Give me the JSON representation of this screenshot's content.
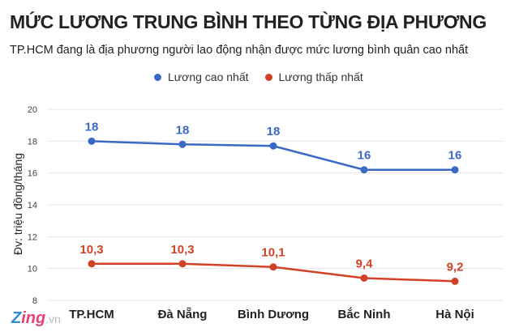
{
  "chart_data": {
    "type": "line",
    "title": "MỨC LƯƠNG TRUNG BÌNH THEO TỪNG ĐỊA PHƯƠNG",
    "subtitle": "TP.HCM đang là địa phương người lao động nhận được mức lương bình quân cao nhất",
    "ylabel": "Đv: triệu đồng/tháng",
    "xlabel": "",
    "categories": [
      "TP.HCM",
      "Đà Nẵng",
      "Bình Dương",
      "Bắc Ninh",
      "Hà Nội"
    ],
    "ylim": [
      8,
      20
    ],
    "yticks": [
      "8",
      "10",
      "12",
      "14",
      "16",
      "18",
      "20"
    ],
    "grid": true,
    "legend_position": "top",
    "series": [
      {
        "name": "Lương cao nhất",
        "color": "#3a68c4",
        "values": [
          18.0,
          17.8,
          17.7,
          16.2,
          16.2
        ],
        "labels": [
          "18",
          "18",
          "18",
          "16",
          "16"
        ]
      },
      {
        "name": "Lương thấp nhất",
        "color": "#d24226",
        "values": [
          10.3,
          10.3,
          10.1,
          9.4,
          9.2
        ],
        "labels": [
          "10,3",
          "10,3",
          "10,1",
          "9,4",
          "9,2"
        ]
      }
    ]
  },
  "logo": {
    "text": "Zing",
    "suffix": ".vn"
  }
}
